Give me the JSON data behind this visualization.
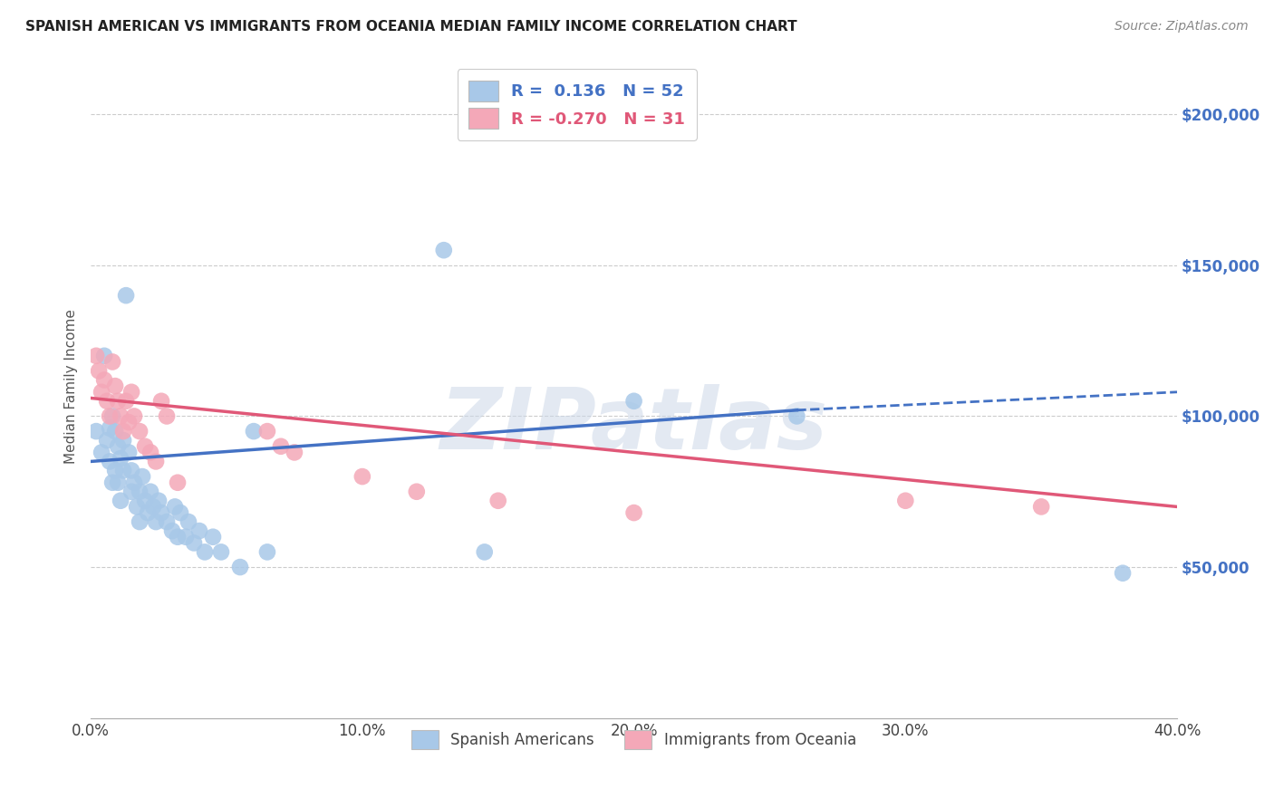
{
  "title": "SPANISH AMERICAN VS IMMIGRANTS FROM OCEANIA MEDIAN FAMILY INCOME CORRELATION CHART",
  "source": "Source: ZipAtlas.com",
  "ylabel": "Median Family Income",
  "watermark": "ZIPatlas",
  "r_blue": 0.136,
  "n_blue": 52,
  "r_pink": -0.27,
  "n_pink": 31,
  "y_ticks": [
    50000,
    100000,
    150000,
    200000
  ],
  "y_tick_labels": [
    "$50,000",
    "$100,000",
    "$150,000",
    "$200,000"
  ],
  "x_min": 0.0,
  "x_max": 0.4,
  "y_min": 0,
  "y_max": 220000,
  "blue_color": "#a8c8e8",
  "pink_color": "#f4a8b8",
  "blue_line_color": "#4472c4",
  "pink_line_color": "#e05878",
  "blue_scatter": [
    [
      0.002,
      95000
    ],
    [
      0.004,
      88000
    ],
    [
      0.005,
      120000
    ],
    [
      0.006,
      92000
    ],
    [
      0.007,
      96000
    ],
    [
      0.007,
      85000
    ],
    [
      0.008,
      100000
    ],
    [
      0.008,
      78000
    ],
    [
      0.009,
      95000
    ],
    [
      0.009,
      82000
    ],
    [
      0.01,
      90000
    ],
    [
      0.01,
      78000
    ],
    [
      0.011,
      86000
    ],
    [
      0.011,
      72000
    ],
    [
      0.012,
      92000
    ],
    [
      0.012,
      82000
    ],
    [
      0.013,
      140000
    ],
    [
      0.014,
      88000
    ],
    [
      0.015,
      82000
    ],
    [
      0.015,
      75000
    ],
    [
      0.016,
      78000
    ],
    [
      0.017,
      70000
    ],
    [
      0.018,
      75000
    ],
    [
      0.018,
      65000
    ],
    [
      0.019,
      80000
    ],
    [
      0.02,
      72000
    ],
    [
      0.021,
      68000
    ],
    [
      0.022,
      75000
    ],
    [
      0.023,
      70000
    ],
    [
      0.024,
      65000
    ],
    [
      0.025,
      72000
    ],
    [
      0.026,
      68000
    ],
    [
      0.028,
      65000
    ],
    [
      0.03,
      62000
    ],
    [
      0.031,
      70000
    ],
    [
      0.032,
      60000
    ],
    [
      0.033,
      68000
    ],
    [
      0.035,
      60000
    ],
    [
      0.036,
      65000
    ],
    [
      0.038,
      58000
    ],
    [
      0.04,
      62000
    ],
    [
      0.042,
      55000
    ],
    [
      0.045,
      60000
    ],
    [
      0.048,
      55000
    ],
    [
      0.055,
      50000
    ],
    [
      0.06,
      95000
    ],
    [
      0.065,
      55000
    ],
    [
      0.13,
      155000
    ],
    [
      0.145,
      55000
    ],
    [
      0.2,
      105000
    ],
    [
      0.26,
      100000
    ],
    [
      0.38,
      48000
    ]
  ],
  "pink_scatter": [
    [
      0.002,
      120000
    ],
    [
      0.003,
      115000
    ],
    [
      0.004,
      108000
    ],
    [
      0.005,
      112000
    ],
    [
      0.006,
      105000
    ],
    [
      0.007,
      100000
    ],
    [
      0.008,
      118000
    ],
    [
      0.009,
      110000
    ],
    [
      0.01,
      105000
    ],
    [
      0.011,
      100000
    ],
    [
      0.012,
      95000
    ],
    [
      0.013,
      105000
    ],
    [
      0.014,
      98000
    ],
    [
      0.015,
      108000
    ],
    [
      0.016,
      100000
    ],
    [
      0.018,
      95000
    ],
    [
      0.02,
      90000
    ],
    [
      0.022,
      88000
    ],
    [
      0.024,
      85000
    ],
    [
      0.026,
      105000
    ],
    [
      0.028,
      100000
    ],
    [
      0.032,
      78000
    ],
    [
      0.065,
      95000
    ],
    [
      0.07,
      90000
    ],
    [
      0.075,
      88000
    ],
    [
      0.1,
      80000
    ],
    [
      0.12,
      75000
    ],
    [
      0.15,
      72000
    ],
    [
      0.2,
      68000
    ],
    [
      0.3,
      72000
    ],
    [
      0.35,
      70000
    ]
  ],
  "blue_line_x_solid_end": 0.26,
  "blue_line_x_dash_start": 0.26,
  "x_tick_labels": [
    "0.0%",
    "10.0%",
    "20.0%",
    "30.0%",
    "40.0%"
  ],
  "x_tick_positions": [
    0.0,
    0.1,
    0.2,
    0.3,
    0.4
  ]
}
